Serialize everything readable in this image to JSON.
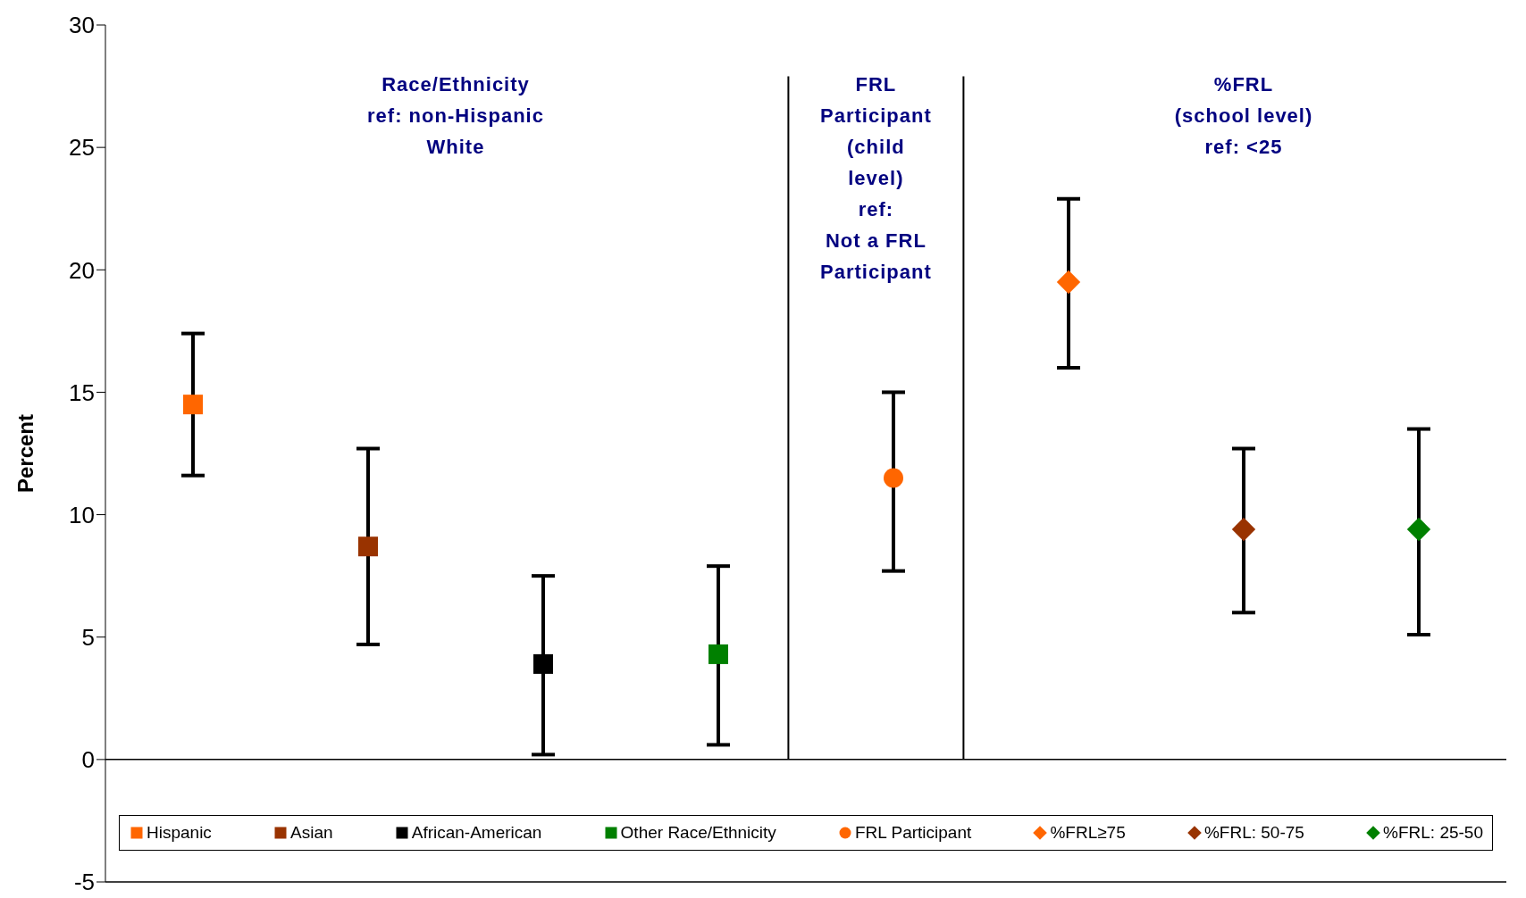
{
  "chart_data": {
    "type": "scatter",
    "ylabel": "Percent",
    "categories": [
      null,
      null,
      null,
      null,
      null,
      null,
      null,
      null
    ],
    "ylim": [
      -5,
      30
    ],
    "yticks": [
      -5,
      0,
      5,
      10,
      15,
      20,
      25,
      30
    ],
    "tick_labels": "y",
    "legend": "bottom",
    "annotations": [
      "Race/Ethnicity\nref: non-Hispanic\nWhite",
      "FRL\nParticipant\n(child\nlevel)\nref:\nNot a FRL\nParticipant",
      "%FRL\n(school level)\nref: <25"
    ],
    "series": [
      {
        "name": "Hispanic",
        "color": "#ff6600",
        "marker": "square",
        "values": [
          14.5,
          null,
          null,
          null,
          null,
          null,
          null,
          null
        ],
        "errors": [
          [
            11.6,
            17.4
          ],
          null,
          null,
          null,
          null,
          null,
          null,
          null
        ]
      },
      {
        "name": "Asian",
        "color": "#993300",
        "marker": "square",
        "values": [
          null,
          8.7,
          null,
          null,
          null,
          null,
          null,
          null
        ],
        "errors": [
          null,
          [
            4.7,
            12.7
          ],
          null,
          null,
          null,
          null,
          null,
          null
        ]
      },
      {
        "name": "African-American",
        "color": "#000000",
        "marker": "square",
        "values": [
          null,
          null,
          3.9,
          null,
          null,
          null,
          null,
          null
        ],
        "errors": [
          null,
          null,
          [
            0.2,
            7.5
          ],
          null,
          null,
          null,
          null,
          null
        ]
      },
      {
        "name": "Other Race/Ethnicity",
        "color": "#008000",
        "marker": "square",
        "values": [
          null,
          null,
          null,
          4.3,
          null,
          null,
          null,
          null
        ],
        "errors": [
          null,
          null,
          null,
          [
            0.6,
            7.9
          ],
          null,
          null,
          null,
          null
        ]
      },
      {
        "name": "FRL Participant",
        "color": "#ff6600",
        "marker": "circle",
        "values": [
          null,
          null,
          null,
          null,
          11.5,
          null,
          null,
          null
        ],
        "errors": [
          null,
          null,
          null,
          null,
          [
            7.7,
            15.0
          ],
          null,
          null,
          null
        ]
      },
      {
        "name": "%FRL≥75",
        "color": "#ff6600",
        "marker": "diamond",
        "values": [
          null,
          null,
          null,
          null,
          null,
          19.5,
          null,
          null
        ],
        "errors": [
          null,
          null,
          null,
          null,
          null,
          [
            16.0,
            22.9
          ],
          null,
          null
        ]
      },
      {
        "name": "%FRL: 50-75",
        "color": "#993300",
        "marker": "diamond",
        "values": [
          null,
          null,
          null,
          null,
          null,
          null,
          9.4,
          null
        ],
        "errors": [
          null,
          null,
          null,
          null,
          null,
          null,
          [
            6.0,
            12.7
          ],
          null
        ]
      },
      {
        "name": "%FRL: 25-50",
        "color": "#008000",
        "marker": "diamond",
        "values": [
          null,
          null,
          null,
          null,
          null,
          null,
          null,
          9.4
        ],
        "errors": [
          null,
          null,
          null,
          null,
          null,
          null,
          null,
          [
            5.1,
            13.5
          ]
        ]
      }
    ]
  }
}
